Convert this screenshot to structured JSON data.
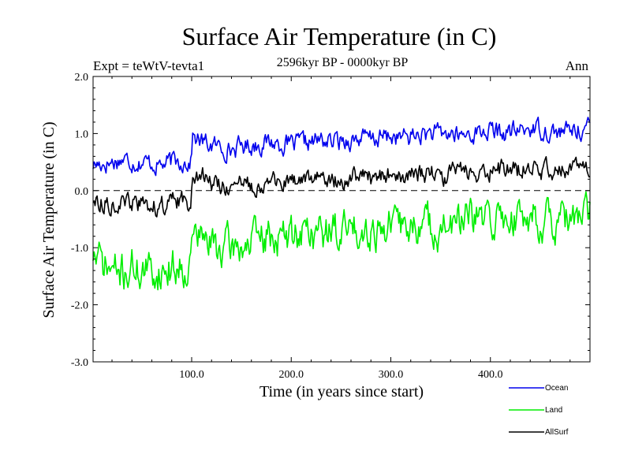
{
  "header": {
    "experiment": "Expt = teWtV-tevta1",
    "period": "2596kyr BP - 0000kyr BP",
    "season": "Ann"
  },
  "chart_data": {
    "type": "line",
    "title": "Surface Air Temperature (in C)",
    "xlabel": "Time (in years since start)",
    "ylabel": "Surface Air Temperature (in C)",
    "xlim": [
      1,
      500
    ],
    "ylim": [
      -3.0,
      2.0
    ],
    "x_ticks": [
      100,
      200,
      300,
      400
    ],
    "x_tick_labels": [
      "100.0",
      "200.0",
      "300.0",
      "400.0"
    ],
    "y_ticks": [
      -3,
      -2,
      -1,
      0,
      1,
      2
    ],
    "y_tick_labels": [
      "-3.0",
      "-2.0",
      "-1.0",
      "0.0",
      "1.0",
      "2.0"
    ],
    "zero_line": 0.0,
    "legend_position": "bottom-right",
    "colors": {
      "Ocean": "#0000ee",
      "Land": "#00ee00",
      "AllSurf": "#000000"
    },
    "series": [
      {
        "name": "Ocean",
        "color": "#0000ee",
        "x": [
          1,
          10,
          20,
          30,
          40,
          50,
          60,
          70,
          80,
          90,
          99,
          101,
          110,
          120,
          130,
          140,
          150,
          160,
          170,
          180,
          190,
          200,
          210,
          220,
          230,
          240,
          250,
          260,
          270,
          280,
          290,
          300,
          310,
          320,
          330,
          340,
          350,
          360,
          370,
          380,
          390,
          400,
          410,
          420,
          430,
          440,
          450,
          460,
          470,
          480,
          490,
          500
        ],
        "values": [
          0.45,
          0.48,
          0.5,
          0.55,
          0.52,
          0.5,
          0.48,
          0.45,
          0.5,
          0.52,
          0.5,
          0.95,
          0.85,
          0.8,
          0.75,
          0.72,
          0.78,
          0.8,
          0.82,
          0.85,
          0.82,
          0.8,
          0.82,
          0.85,
          0.88,
          0.85,
          0.88,
          0.9,
          0.92,
          0.9,
          0.93,
          0.95,
          0.92,
          0.95,
          0.98,
          1.0,
          0.98,
          1.0,
          0.95,
          1.0,
          1.02,
          1.05,
          1.0,
          1.02,
          1.05,
          1.1,
          1.08,
          1.05,
          1.02,
          1.05,
          1.08,
          1.1
        ]
      },
      {
        "name": "Land",
        "color": "#00ee00",
        "x": [
          1,
          10,
          20,
          30,
          40,
          50,
          60,
          70,
          80,
          90,
          99,
          101,
          110,
          120,
          130,
          140,
          150,
          160,
          170,
          180,
          190,
          200,
          210,
          220,
          230,
          240,
          250,
          260,
          270,
          280,
          290,
          300,
          310,
          320,
          330,
          340,
          350,
          360,
          370,
          380,
          390,
          400,
          410,
          420,
          430,
          440,
          450,
          460,
          470,
          480,
          490,
          500
        ],
        "values": [
          -1.1,
          -1.3,
          -1.4,
          -1.45,
          -1.35,
          -1.4,
          -1.45,
          -1.4,
          -1.35,
          -1.3,
          -1.3,
          -0.7,
          -0.85,
          -0.95,
          -1.0,
          -1.0,
          -0.95,
          -0.9,
          -0.85,
          -0.8,
          -0.85,
          -0.8,
          -0.7,
          -0.72,
          -0.75,
          -0.7,
          -0.7,
          -0.65,
          -0.62,
          -0.68,
          -0.65,
          -0.6,
          -0.62,
          -0.65,
          -0.6,
          -0.6,
          -0.7,
          -0.65,
          -0.55,
          -0.5,
          -0.55,
          -0.5,
          -0.5,
          -0.45,
          -0.5,
          -0.4,
          -0.5,
          -0.55,
          -0.6,
          -0.55,
          -0.5,
          -0.45
        ]
      },
      {
        "name": "AllSurf",
        "color": "#000000",
        "x": [
          1,
          10,
          20,
          30,
          40,
          50,
          60,
          70,
          80,
          90,
          99,
          101,
          110,
          120,
          130,
          140,
          150,
          160,
          170,
          180,
          190,
          200,
          210,
          220,
          230,
          240,
          250,
          260,
          270,
          280,
          290,
          300,
          310,
          320,
          330,
          340,
          350,
          360,
          370,
          380,
          390,
          400,
          410,
          420,
          430,
          440,
          450,
          460,
          470,
          480,
          490,
          500
        ],
        "values": [
          -0.15,
          -0.2,
          -0.22,
          -0.25,
          -0.22,
          -0.25,
          -0.28,
          -0.25,
          -0.22,
          -0.2,
          -0.2,
          0.4,
          0.25,
          0.15,
          0.1,
          0.05,
          0.08,
          0.1,
          0.12,
          0.15,
          0.12,
          0.12,
          0.18,
          0.2,
          0.22,
          0.2,
          0.2,
          0.22,
          0.25,
          0.22,
          0.25,
          0.28,
          0.25,
          0.25,
          0.28,
          0.3,
          0.25,
          0.28,
          0.32,
          0.35,
          0.33,
          0.35,
          0.35,
          0.38,
          0.35,
          0.4,
          0.38,
          0.36,
          0.35,
          0.37,
          0.4,
          0.42
        ]
      }
    ],
    "legend": [
      {
        "label": "Ocean",
        "color": "#0000ee"
      },
      {
        "label": "Land",
        "color": "#00ee00"
      },
      {
        "label": "AllSurf",
        "color": "#000000"
      }
    ]
  }
}
